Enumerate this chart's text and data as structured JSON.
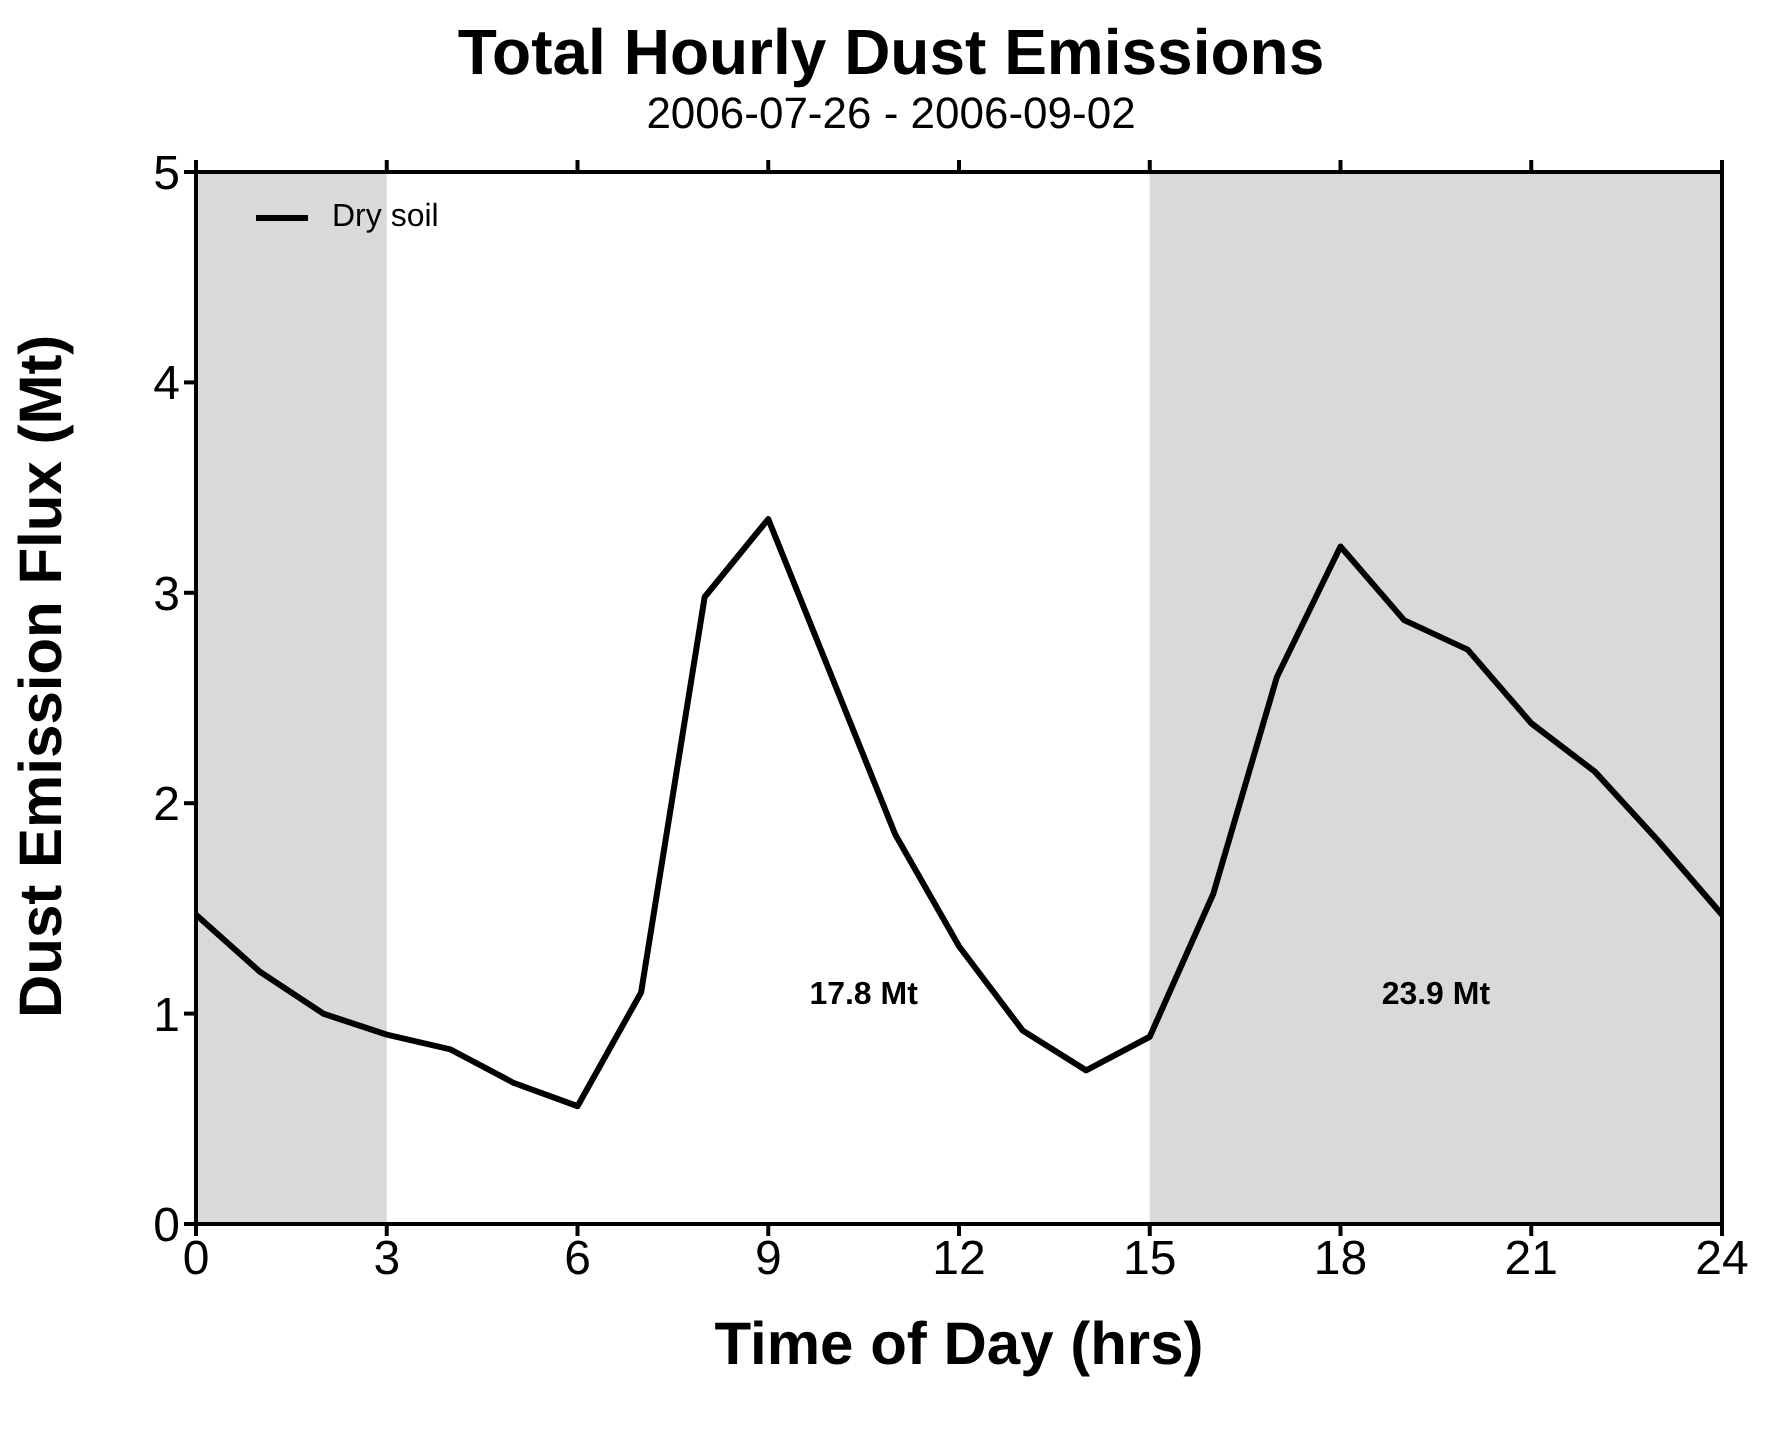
{
  "chart_data": {
    "type": "line",
    "title": "Total Hourly Dust Emissions",
    "subtitle": "2006-07-26 - 2006-09-02",
    "xlabel": "Time of Day (hrs)",
    "ylabel": "Dust Emission Flux (Mt)",
    "x": [
      0,
      1,
      2,
      3,
      4,
      5,
      6,
      7,
      8,
      9,
      10,
      11,
      12,
      13,
      14,
      15,
      16,
      17,
      18,
      19,
      20,
      21,
      22,
      23,
      24
    ],
    "series": [
      {
        "name": "Dry soil",
        "color": "#000000",
        "values": [
          1.47,
          1.2,
          1.0,
          0.9,
          0.83,
          0.67,
          0.56,
          1.1,
          2.98,
          3.35,
          2.6,
          1.85,
          1.32,
          0.92,
          0.73,
          0.89,
          1.57,
          2.6,
          3.22,
          2.87,
          2.73,
          2.38,
          2.15,
          1.82,
          1.47
        ]
      }
    ],
    "xlim": [
      0,
      24
    ],
    "xticks": [
      0,
      3,
      6,
      9,
      12,
      15,
      18,
      21,
      24
    ],
    "ylim": [
      0,
      5
    ],
    "yticks": [
      0,
      1,
      2,
      3,
      4,
      5
    ],
    "bands": [
      {
        "axis": "x",
        "from": 0,
        "to": 3,
        "color": "#d9d9d9"
      },
      {
        "axis": "x",
        "from": 15,
        "to": 24,
        "color": "#d9d9d9"
      }
    ],
    "annotations": [
      "17.8 Mt",
      "23.9 Mt"
    ],
    "legend": "top left",
    "grid": false,
    "marker": "none",
    "line_style": "solid"
  }
}
